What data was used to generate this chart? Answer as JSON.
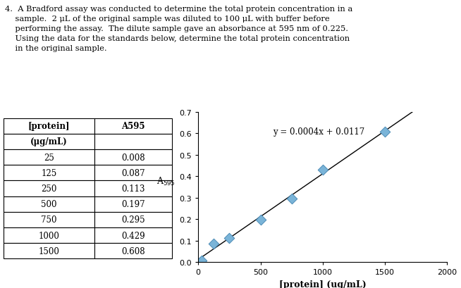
{
  "x_data": [
    25,
    125,
    250,
    500,
    750,
    1000,
    1500
  ],
  "y_data": [
    0.008,
    0.087,
    0.113,
    0.197,
    0.295,
    0.429,
    0.608
  ],
  "slope": 0.0004,
  "intercept": 0.0117,
  "equation": "y = 0.0004x + 0.0117",
  "xlabel": "[protein] (ug/mL)",
  "xlim": [
    0,
    2000
  ],
  "ylim": [
    0,
    0.7
  ],
  "yticks": [
    0,
    0.1,
    0.2,
    0.3,
    0.4,
    0.5,
    0.6,
    0.7
  ],
  "xticks": [
    0,
    500,
    1000,
    1500,
    2000
  ],
  "marker_color": "#7ab4d8",
  "marker_edge_color": "#4a8ab5",
  "line_color": "#000000",
  "bg_color": "#ffffff",
  "table_col0": [
    "[protein]",
    "(μg/mL)",
    "25",
    "125",
    "250",
    "500",
    "750",
    "1000",
    "1500"
  ],
  "table_col1": [
    "A595",
    "",
    "0.008",
    "0.087",
    "0.113",
    "0.197",
    "0.295",
    "0.429",
    "0.608"
  ],
  "top_text_lines": [
    "4.  A Bradford assay was conducted to determine the total protein concentration in a",
    "    sample.  2 μL of the original sample was diluted to 100 μL with buffer before",
    "    performing the assay.  The dilute sample gave an absorbance at 595 nm of 0.225.",
    "    Using the data for the standards below, determine the total protein concentration",
    "    in the original sample."
  ]
}
